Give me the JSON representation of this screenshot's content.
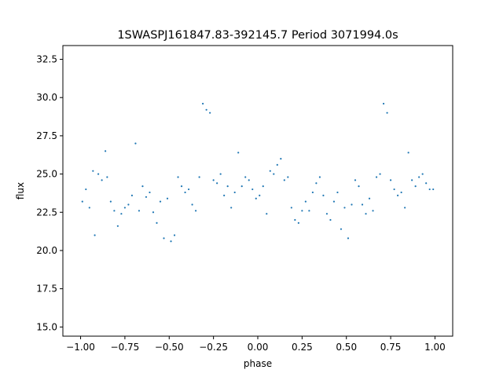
{
  "chart_data": {
    "type": "scatter",
    "title": "1SWASPJ161847.83-392145.7 Period 3071994.0s",
    "xlabel": "phase",
    "ylabel": "flux",
    "xlim": [
      -1.1,
      1.1
    ],
    "ylim": [
      14.4,
      33.4
    ],
    "xticks": [
      -1.0,
      -0.75,
      -0.5,
      -0.25,
      0.0,
      0.25,
      0.5,
      0.75,
      1.0
    ],
    "xtick_labels": [
      "−1.00",
      "−0.75",
      "−0.50",
      "−0.25",
      "0.00",
      "0.25",
      "0.50",
      "0.75",
      "1.00"
    ],
    "yticks": [
      15.0,
      17.5,
      20.0,
      22.5,
      25.0,
      27.5,
      30.0,
      32.5
    ],
    "ytick_labels": [
      "15.0",
      "17.5",
      "20.0",
      "22.5",
      "25.0",
      "27.5",
      "30.0",
      "32.5"
    ],
    "grid": false,
    "series": [
      {
        "color": "#1f77b4",
        "marker": "point",
        "points": [
          [
            -0.99,
            23.2
          ],
          [
            -0.97,
            24.0
          ],
          [
            -0.95,
            22.8
          ],
          [
            -0.93,
            25.2
          ],
          [
            -0.92,
            21.0
          ],
          [
            -0.9,
            25.0
          ],
          [
            -0.88,
            24.6
          ],
          [
            -0.86,
            26.5
          ],
          [
            -0.85,
            24.8
          ],
          [
            -0.83,
            23.2
          ],
          [
            -0.81,
            22.6
          ],
          [
            -0.79,
            21.6
          ],
          [
            -0.77,
            22.4
          ],
          [
            -0.75,
            22.8
          ],
          [
            -0.73,
            23.0
          ],
          [
            -0.71,
            23.6
          ],
          [
            -0.69,
            27.0
          ],
          [
            -0.67,
            22.6
          ],
          [
            -0.65,
            24.2
          ],
          [
            -0.63,
            23.5
          ],
          [
            -0.61,
            23.8
          ],
          [
            -0.59,
            22.5
          ],
          [
            -0.57,
            21.8
          ],
          [
            -0.55,
            23.2
          ],
          [
            -0.53,
            20.8
          ],
          [
            -0.51,
            23.4
          ],
          [
            -0.49,
            20.6
          ],
          [
            -0.47,
            21.0
          ],
          [
            -0.45,
            24.8
          ],
          [
            -0.43,
            24.2
          ],
          [
            -0.41,
            23.8
          ],
          [
            -0.39,
            24.0
          ],
          [
            -0.37,
            23.0
          ],
          [
            -0.35,
            22.6
          ],
          [
            -0.33,
            24.8
          ],
          [
            -0.31,
            29.6
          ],
          [
            -0.29,
            29.2
          ],
          [
            -0.27,
            29.0
          ],
          [
            -0.25,
            24.6
          ],
          [
            -0.23,
            24.4
          ],
          [
            -0.21,
            25.0
          ],
          [
            -0.19,
            23.6
          ],
          [
            -0.17,
            24.2
          ],
          [
            -0.15,
            22.8
          ],
          [
            -0.13,
            23.8
          ],
          [
            -0.11,
            26.4
          ],
          [
            -0.09,
            24.2
          ],
          [
            -0.07,
            24.8
          ],
          [
            -0.05,
            24.6
          ],
          [
            -0.03,
            24.0
          ],
          [
            -0.01,
            23.4
          ],
          [
            0.01,
            23.6
          ],
          [
            0.03,
            24.2
          ],
          [
            0.05,
            22.4
          ],
          [
            0.07,
            25.2
          ],
          [
            0.09,
            25.0
          ],
          [
            0.11,
            25.6
          ],
          [
            0.13,
            26.0
          ],
          [
            0.15,
            24.6
          ],
          [
            0.17,
            24.8
          ],
          [
            0.19,
            22.8
          ],
          [
            0.21,
            22.0
          ],
          [
            0.23,
            21.8
          ],
          [
            0.25,
            22.6
          ],
          [
            0.27,
            23.2
          ],
          [
            0.29,
            22.6
          ],
          [
            0.31,
            23.8
          ],
          [
            0.33,
            24.4
          ],
          [
            0.35,
            24.8
          ],
          [
            0.37,
            23.6
          ],
          [
            0.39,
            22.4
          ],
          [
            0.41,
            22.0
          ],
          [
            0.43,
            23.2
          ],
          [
            0.45,
            23.8
          ],
          [
            0.47,
            21.4
          ],
          [
            0.49,
            22.8
          ],
          [
            0.51,
            20.8
          ],
          [
            0.53,
            23.0
          ],
          [
            0.55,
            24.6
          ],
          [
            0.57,
            24.2
          ],
          [
            0.59,
            23.0
          ],
          [
            0.61,
            22.4
          ],
          [
            0.63,
            23.4
          ],
          [
            0.65,
            22.6
          ],
          [
            0.67,
            24.8
          ],
          [
            0.69,
            25.0
          ],
          [
            0.71,
            29.6
          ],
          [
            0.73,
            29.0
          ],
          [
            0.75,
            24.6
          ],
          [
            0.77,
            24.0
          ],
          [
            0.79,
            23.6
          ],
          [
            0.81,
            23.8
          ],
          [
            0.83,
            22.8
          ],
          [
            0.85,
            26.4
          ],
          [
            0.87,
            24.6
          ],
          [
            0.89,
            24.2
          ],
          [
            0.91,
            24.8
          ],
          [
            0.93,
            25.0
          ],
          [
            0.95,
            24.4
          ],
          [
            0.97,
            24.0
          ],
          [
            0.99,
            24.0
          ]
        ]
      }
    ]
  }
}
